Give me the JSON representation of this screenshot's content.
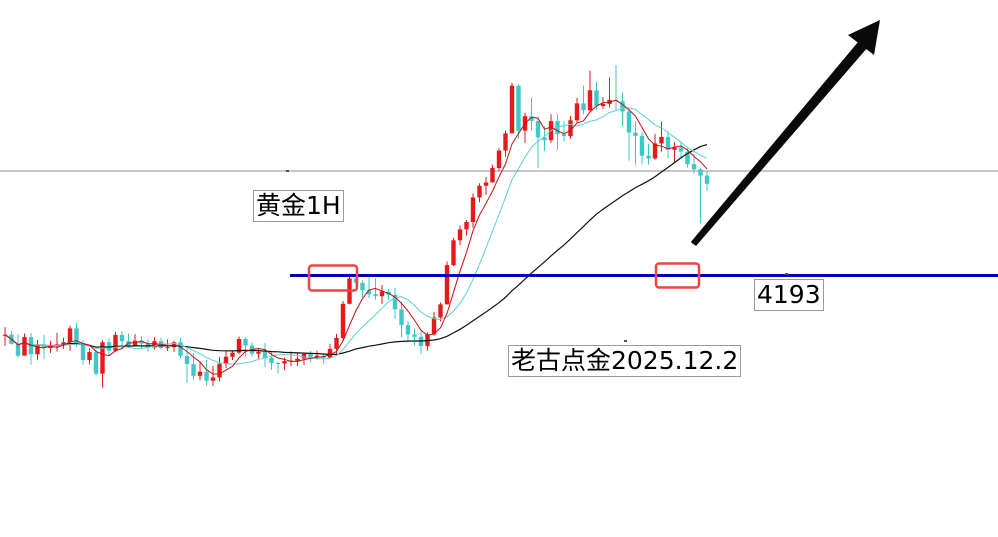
{
  "chart_data": {
    "type": "candlestick",
    "title": "黄金1H",
    "watermark": "老古点金2025.12.2",
    "support_label": "4193",
    "support_level": 4193,
    "resistance_reference": 4236,
    "y_range": [
      4140,
      4272
    ],
    "x_range": [
      0,
      139
    ],
    "up_color": "#e51a1a",
    "down_color": "#3fc8c8",
    "ma_fast_color": "#c81010",
    "ma_mid_color": "#5fd0d0",
    "ma_slow_color": "#111111",
    "support_line_color": "#0000c0",
    "highlight_box_color": "#ee4444",
    "arrow_color": "#0a0a0a",
    "forecast": "up",
    "candles": [
      [
        4170.9,
        4174.1,
        4167.2,
        4171.3
      ],
      [
        4171.3,
        4172.7,
        4167.7,
        4167.9
      ],
      [
        4167.9,
        4171.4,
        4162.9,
        4163.6
      ],
      [
        4163.6,
        4171.7,
        4163.6,
        4170.4
      ],
      [
        4170.4,
        4172.0,
        4160.3,
        4164.1
      ],
      [
        4164.1,
        4169.4,
        4162.1,
        4167.6
      ],
      [
        4167.6,
        4171.2,
        4162.3,
        4166.4
      ],
      [
        4166.4,
        4169.0,
        4164.6,
        4167.1
      ],
      [
        4167.1,
        4171.9,
        4165.1,
        4167.7
      ],
      [
        4167.7,
        4170.2,
        4166.1,
        4168.5
      ],
      [
        4168.5,
        4174.6,
        4165.4,
        4173.6
      ],
      [
        4173.6,
        4175.6,
        4166.9,
        4168.3
      ],
      [
        4168.3,
        4169.4,
        4160.3,
        4162.0
      ],
      [
        4162.0,
        4166.3,
        4160.4,
        4164.9
      ],
      [
        4164.9,
        4165.9,
        4156.3,
        4157.0
      ],
      [
        4157.0,
        4169.3,
        4151.9,
        4168.5
      ],
      [
        4168.5,
        4169.8,
        4163.4,
        4165.4
      ],
      [
        4165.4,
        4172.3,
        4165.0,
        4171.2
      ],
      [
        4171.2,
        4172.6,
        4166.2,
        4168.9
      ],
      [
        4168.9,
        4171.7,
        4166.4,
        4167.2
      ],
      [
        4167.2,
        4171.5,
        4166.9,
        4169.1
      ],
      [
        4169.1,
        4170.6,
        4166.3,
        4168.0
      ],
      [
        4168.0,
        4169.6,
        4165.1,
        4166.6
      ],
      [
        4166.6,
        4170.4,
        4165.8,
        4168.9
      ],
      [
        4168.9,
        4170.2,
        4165.9,
        4166.4
      ],
      [
        4166.4,
        4169.5,
        4165.3,
        4166.7
      ],
      [
        4166.7,
        4169.1,
        4165.0,
        4168.5
      ],
      [
        4168.5,
        4170.1,
        4162.6,
        4163.5
      ],
      [
        4163.5,
        4166.9,
        4153.6,
        4160.5
      ],
      [
        4160.5,
        4164.5,
        4154.9,
        4156.2
      ],
      [
        4156.2,
        4161.4,
        4154.6,
        4157.7
      ],
      [
        4157.7,
        4162.0,
        4152.6,
        4154.4
      ],
      [
        4154.4,
        4159.9,
        4152.4,
        4155.6
      ],
      [
        4155.6,
        4163.1,
        4154.1,
        4160.6
      ],
      [
        4160.6,
        4165.3,
        4159.1,
        4163.2
      ],
      [
        4163.2,
        4165.4,
        4162.0,
        4164.7
      ],
      [
        4164.7,
        4170.6,
        4164.1,
        4169.7
      ],
      [
        4169.7,
        4170.3,
        4163.3,
        4167.3
      ],
      [
        4167.3,
        4168.5,
        4163.3,
        4164.3
      ],
      [
        4164.3,
        4166.1,
        4162.5,
        4165.0
      ],
      [
        4165.0,
        4168.3,
        4159.4,
        4162.8
      ],
      [
        4162.8,
        4165.1,
        4158.4,
        4160.9
      ],
      [
        4160.9,
        4161.4,
        4157.1,
        4160.7
      ],
      [
        4160.7,
        4162.9,
        4158.3,
        4161.6
      ],
      [
        4161.6,
        4165.1,
        4159.7,
        4161.7
      ],
      [
        4161.7,
        4164.9,
        4159.8,
        4162.5
      ],
      [
        4162.5,
        4164.5,
        4160.1,
        4164.2
      ],
      [
        4164.2,
        4165.3,
        4161.2,
        4163.0
      ],
      [
        4163.0,
        4165.4,
        4162.2,
        4163.6
      ],
      [
        4163.6,
        4164.1,
        4160.6,
        4162.8
      ],
      [
        4162.8,
        4167.8,
        4162.8,
        4166.1
      ],
      [
        4166.1,
        4171.6,
        4163.9,
        4170.1
      ],
      [
        4170.1,
        4183.6,
        4169.5,
        4182.6
      ],
      [
        4182.6,
        4192.6,
        4182.4,
        4191.9
      ],
      [
        4191.9,
        4193.1,
        4188.1,
        4190.3
      ],
      [
        4190.3,
        4191.2,
        4184.9,
        4187.6
      ],
      [
        4187.6,
        4192.2,
        4184.7,
        4186.1
      ],
      [
        4186.1,
        4191.9,
        4184.1,
        4185.4
      ],
      [
        4185.4,
        4189.6,
        4182.6,
        4187.1
      ],
      [
        4187.1,
        4188.1,
        4184.1,
        4185.9
      ],
      [
        4185.9,
        4188.5,
        4177.1,
        4180.6
      ],
      [
        4180.6,
        4183.4,
        4170.3,
        4174.8
      ],
      [
        4174.8,
        4176.4,
        4168.4,
        4171.4
      ],
      [
        4171.4,
        4173.6,
        4167.2,
        4170.5
      ],
      [
        4170.5,
        4172.6,
        4164.1,
        4167.1
      ],
      [
        4167.1,
        4172.1,
        4165.4,
        4171.4
      ],
      [
        4171.4,
        4179.6,
        4170.9,
        4177.6
      ],
      [
        4177.6,
        4183.1,
        4176.1,
        4182.4
      ],
      [
        4182.4,
        4198.1,
        4182.4,
        4196.8
      ],
      [
        4196.8,
        4206.8,
        4196.4,
        4205.9
      ],
      [
        4205.9,
        4211.3,
        4204.1,
        4209.9
      ],
      [
        4209.9,
        4213.3,
        4207.6,
        4212.6
      ],
      [
        4212.6,
        4223.1,
        4210.5,
        4221.6
      ],
      [
        4221.6,
        4226.8,
        4219.8,
        4225.9
      ],
      [
        4225.9,
        4229.1,
        4222.6,
        4227.1
      ],
      [
        4227.1,
        4233.6,
        4227.1,
        4232.4
      ],
      [
        4232.4,
        4239.6,
        4231.5,
        4238.8
      ],
      [
        4238.8,
        4246.1,
        4236.5,
        4245.1
      ],
      [
        4245.1,
        4263.6,
        4245.1,
        4262.6
      ],
      [
        4262.6,
        4263.1,
        4243.1,
        4246.1
      ],
      [
        4246.1,
        4252.6,
        4241.6,
        4251.4
      ],
      [
        4251.4,
        4258.1,
        4246.1,
        4249.6
      ],
      [
        4249.6,
        4251.4,
        4232.3,
        4243.6
      ],
      [
        4243.6,
        4247.8,
        4238.6,
        4242.6
      ],
      [
        4242.6,
        4252.1,
        4241.6,
        4249.6
      ],
      [
        4249.6,
        4252.1,
        4239.1,
        4244.8
      ],
      [
        4244.8,
        4249.6,
        4242.1,
        4244.1
      ],
      [
        4244.1,
        4251.5,
        4243.1,
        4249.9
      ],
      [
        4249.9,
        4258.1,
        4249.1,
        4256.1
      ],
      [
        4256.1,
        4262.6,
        4252.1,
        4253.6
      ],
      [
        4253.6,
        4268.1,
        4253.1,
        4260.9
      ],
      [
        4260.9,
        4264.1,
        4253.6,
        4255.1
      ],
      [
        4255.1,
        4258.4,
        4254.1,
        4255.9
      ],
      [
        4255.9,
        4265.6,
        4254.6,
        4257.4
      ],
      [
        4257.4,
        4270.1,
        4253.6,
        4256.9
      ],
      [
        4256.9,
        4260.1,
        4247.6,
        4253.1
      ],
      [
        4253.1,
        4254.1,
        4235.1,
        4245.4
      ],
      [
        4245.4,
        4249.6,
        4233.6,
        4244.2
      ],
      [
        4244.2,
        4245.6,
        4233.6,
        4236.9
      ],
      [
        4236.9,
        4241.4,
        4233.6,
        4235.9
      ],
      [
        4235.9,
        4244.9,
        4235.4,
        4241.4
      ],
      [
        4241.4,
        4249.4,
        4238.4,
        4243.8
      ],
      [
        4243.8,
        4245.9,
        4236.1,
        4239.1
      ],
      [
        4239.1,
        4241.9,
        4234.1,
        4239.9
      ],
      [
        4239.9,
        4242.1,
        4236.4,
        4238.4
      ],
      [
        4238.4,
        4239.6,
        4232.6,
        4233.8
      ],
      [
        4233.8,
        4237.6,
        4230.4,
        4231.9
      ],
      [
        4231.9,
        4232.6,
        4212.1,
        4229.6
      ],
      [
        4229.6,
        4231.4,
        4223.9,
        4226.6
      ]
    ]
  }
}
